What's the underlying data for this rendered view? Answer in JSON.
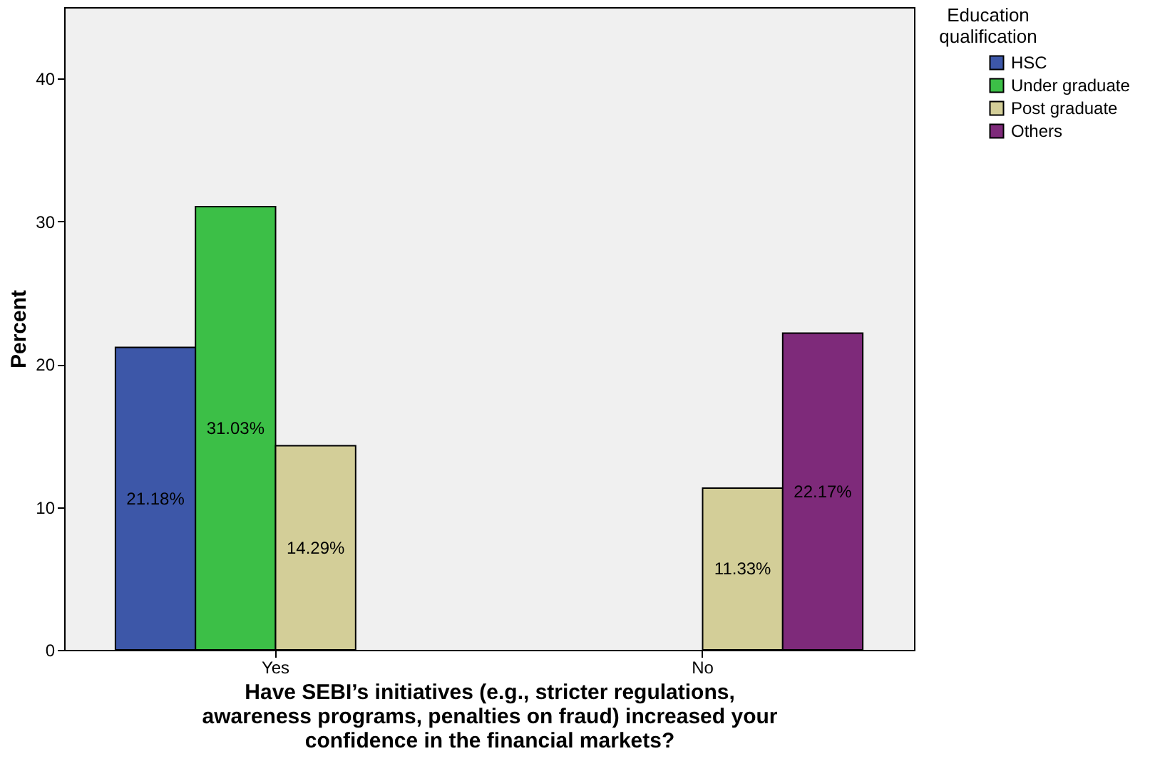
{
  "chart_data": {
    "type": "bar",
    "xlabel": "Have SEBI’s initiatives (e.g., stricter regulations, awareness programs, penalties on fraud) increased your confidence in the financial markets?",
    "ylabel": "Percent",
    "legend_title": "Education qualification",
    "categories": [
      "Yes",
      "No"
    ],
    "series": [
      {
        "name": "HSC",
        "color": "#3d57a8",
        "values": [
          21.18,
          null
        ],
        "value_labels": [
          "21.18%",
          null
        ]
      },
      {
        "name": "Under graduate",
        "color": "#3cbf47",
        "values": [
          31.03,
          null
        ],
        "value_labels": [
          "31.03%",
          null
        ]
      },
      {
        "name": "Post graduate",
        "color": "#d3ce98",
        "values": [
          14.29,
          11.33
        ],
        "value_labels": [
          "14.29%",
          "11.33%"
        ]
      },
      {
        "name": "Others",
        "color": "#7e2a7a",
        "values": [
          null,
          22.17
        ],
        "value_labels": [
          null,
          "22.17%"
        ]
      }
    ],
    "ylim": [
      0,
      45
    ],
    "yticks": [
      0,
      10,
      20,
      30,
      40
    ],
    "grid": false,
    "legend": "top right"
  }
}
